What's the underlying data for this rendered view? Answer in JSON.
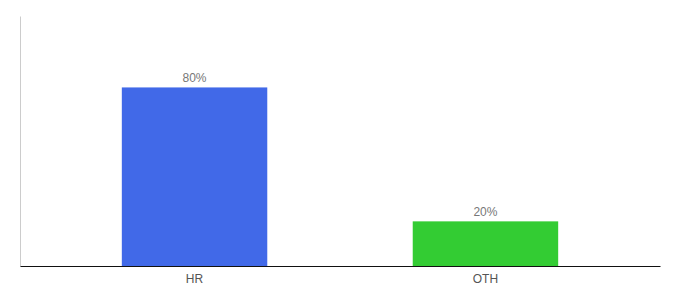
{
  "chart_data": {
    "type": "bar",
    "categories": [
      "HR",
      "OTH"
    ],
    "values": [
      80,
      20
    ],
    "value_labels": [
      "80%",
      "20%"
    ],
    "colors": [
      "#4169e8",
      "#33cc33"
    ],
    "ylim": [
      0,
      112
    ],
    "data_labels": true,
    "tick_labels": "x"
  }
}
